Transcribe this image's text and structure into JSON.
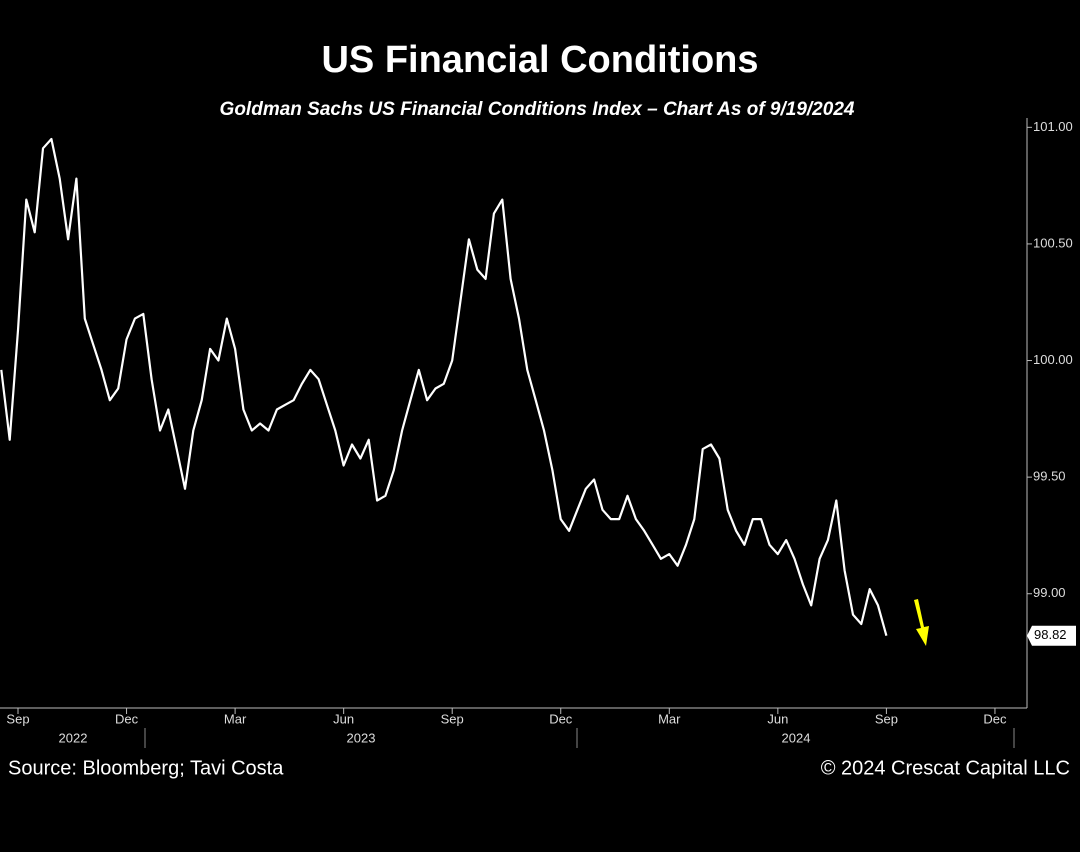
{
  "chart_data": {
    "type": "line",
    "title": "US Financial Conditions",
    "subtitle": "Goldman Sachs US Financial Conditions Index – Chart As of 9/19/2024",
    "source": "Source: Bloomberg; Tavi Costa",
    "copyright": "© 2024 Crescat Capital LLC",
    "categories": [
      null,
      null,
      "Sep",
      null,
      null,
      null,
      null,
      null,
      null,
      null,
      null,
      null,
      null,
      null,
      null,
      "Dec",
      null,
      null,
      null,
      null,
      null,
      null,
      null,
      null,
      null,
      null,
      null,
      null,
      "Mar",
      null,
      null,
      null,
      null,
      null,
      null,
      null,
      null,
      null,
      null,
      null,
      null,
      "Jun",
      null,
      null,
      null,
      null,
      null,
      null,
      null,
      null,
      null,
      null,
      null,
      null,
      "Sep",
      null,
      null,
      null,
      null,
      null,
      null,
      null,
      null,
      null,
      null,
      null,
      null,
      "Dec",
      null,
      null,
      null,
      null,
      null,
      null,
      null,
      null,
      null,
      null,
      null,
      null,
      "Mar",
      null,
      null,
      null,
      null,
      null,
      null,
      null,
      null,
      null,
      null,
      null,
      null,
      "Jun",
      null,
      null,
      null,
      null,
      null,
      null,
      null,
      null,
      null,
      null,
      null,
      null,
      "Sep",
      null,
      null,
      null,
      null,
      null,
      null,
      null,
      null,
      null,
      null,
      null,
      null,
      "Dec"
    ],
    "years": [
      "2022",
      "2023",
      "2024"
    ],
    "series": [
      {
        "name": "Goldman Sachs US Financial Conditions Index",
        "color": "#ffffff",
        "values": [
          99.96,
          99.66,
          100.13,
          100.69,
          100.55,
          100.91,
          100.95,
          100.78,
          100.52,
          100.78,
          100.18,
          100.07,
          99.96,
          99.83,
          99.88,
          100.09,
          100.18,
          100.2,
          99.92,
          99.7,
          99.79,
          99.62,
          99.45,
          99.7,
          99.83,
          100.05,
          100.0,
          100.18,
          100.05,
          99.79,
          99.7,
          99.73,
          99.7,
          99.79,
          99.81,
          99.83,
          99.9,
          99.96,
          99.92,
          99.81,
          99.7,
          99.55,
          99.64,
          99.58,
          99.66,
          99.4,
          99.42,
          99.53,
          99.7,
          99.83,
          99.96,
          99.83,
          99.88,
          99.9,
          100.0,
          100.26,
          100.52,
          100.39,
          100.35,
          100.63,
          100.69,
          100.35,
          100.18,
          99.96,
          99.83,
          99.7,
          99.53,
          99.32,
          99.27,
          99.36,
          99.45,
          99.49,
          99.36,
          99.32,
          99.32,
          99.42,
          99.32,
          99.27,
          99.21,
          99.15,
          99.17,
          99.12,
          99.21,
          99.32,
          99.62,
          99.64,
          99.58,
          99.36,
          99.27,
          99.21,
          99.32,
          99.32,
          99.21,
          99.17,
          99.23,
          99.15,
          99.04,
          98.95,
          99.15,
          99.23,
          99.4,
          99.1,
          98.91,
          98.87,
          99.02,
          98.95,
          98.82,
          null,
          null,
          null,
          null,
          null,
          null,
          null,
          null,
          null,
          null,
          null,
          null,
          null
        ]
      }
    ],
    "ylim": [
      98.51,
      101.04
    ],
    "yticks": [
      {
        "value": 99,
        "label": "99.00"
      },
      {
        "value": 99.5,
        "label": "99.50"
      },
      {
        "value": 100,
        "label": "100.00"
      },
      {
        "value": 100.5,
        "label": "100.50"
      },
      {
        "value": 101,
        "label": "101.00"
      }
    ],
    "annotation_color": "#ffff00"
  }
}
